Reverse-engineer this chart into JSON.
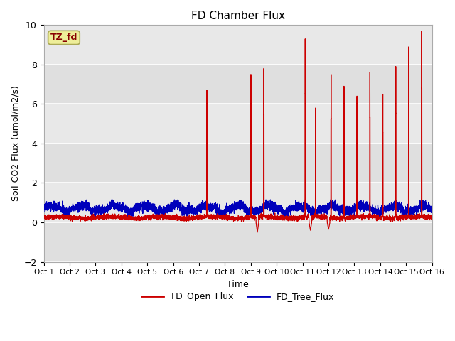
{
  "title": "FD Chamber Flux",
  "xlabel": "Time",
  "ylabel": "Soil CO2 Flux (umol/m2/s)",
  "ylim": [
    -2,
    10
  ],
  "xlim": [
    0,
    15
  ],
  "yticks": [
    -2,
    0,
    2,
    4,
    6,
    8,
    10
  ],
  "xtick_labels": [
    "Oct 1",
    "Oct 2",
    "Oct 3",
    "Oct 4",
    "Oct 5",
    "Oct 6",
    "Oct 7",
    "Oct 8",
    "Oct 9",
    "Oct 10",
    "Oct 11",
    "Oct 12",
    "Oct 13",
    "Oct 14",
    "Oct 15",
    "Oct 16"
  ],
  "line1_color": "#cc0000",
  "line2_color": "#0000bb",
  "annotation_text": "TZ_fd",
  "annotation_color": "#880000",
  "annotation_bg": "#eeee99",
  "legend_labels": [
    "FD_Open_Flux",
    "FD_Tree_Flux"
  ],
  "bg_color": "#e8e8e8",
  "band_color": "#d8d8d8",
  "spike_locs": [
    6.3,
    8.0,
    8.5,
    10.1,
    10.5,
    11.1,
    11.6,
    12.1,
    12.6,
    13.1,
    13.6,
    14.1,
    14.6
  ],
  "spike_heights": [
    6.7,
    7.5,
    7.8,
    9.3,
    5.8,
    7.5,
    6.9,
    6.4,
    7.6,
    6.5,
    7.9,
    8.9,
    9.7
  ],
  "neg_locs": [
    8.25,
    10.3,
    11.0
  ],
  "neg_depths": [
    -0.5,
    -0.4,
    -0.35
  ]
}
